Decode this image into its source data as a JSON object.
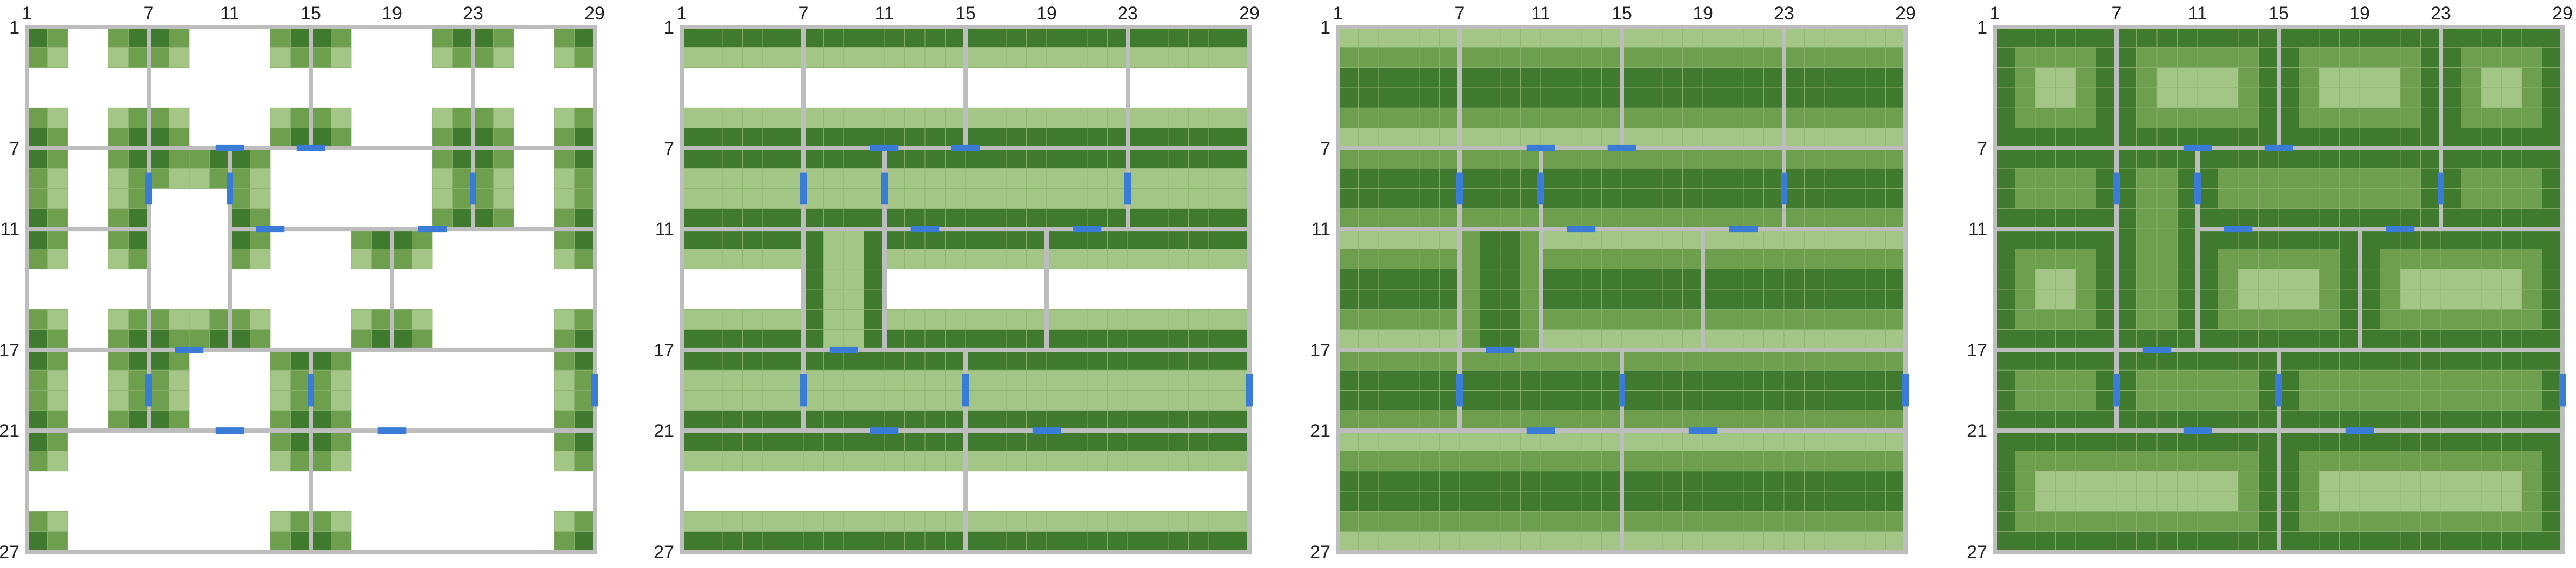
{
  "figure": {
    "x_ticks": [
      "1",
      "7",
      "11",
      "15",
      "19",
      "23",
      "29"
    ],
    "y_ticks": [
      "1",
      "7",
      "11",
      "17",
      "21",
      "27"
    ],
    "colors": {
      "dark": "#3f7a2e",
      "medium": "#6d9f4f",
      "light": "#a3c585",
      "cell_line": "#8cb36f",
      "boundary": "#bdbdbd",
      "connector": "#3a7bd5"
    },
    "shared_x_boundaries": [
      1,
      7,
      11,
      15,
      19,
      23,
      29
    ],
    "shared_y_boundaries": [
      1,
      7,
      11,
      17,
      21,
      27
    ],
    "panels": [
      {
        "pattern": "corners",
        "blocks": [
          [
            1,
            1,
            7,
            7
          ],
          [
            7,
            1,
            15,
            7
          ],
          [
            15,
            1,
            23,
            7
          ],
          [
            23,
            1,
            29,
            7
          ],
          [
            1,
            7,
            7,
            11
          ],
          [
            7,
            7,
            11,
            17
          ],
          [
            11,
            7,
            23,
            11
          ],
          [
            23,
            7,
            29,
            11
          ],
          [
            1,
            11,
            7,
            17
          ],
          [
            11,
            11,
            19,
            17
          ],
          [
            19,
            11,
            29,
            17
          ],
          [
            1,
            17,
            7,
            21
          ],
          [
            7,
            17,
            15,
            21
          ],
          [
            15,
            17,
            29,
            21
          ],
          [
            1,
            21,
            15,
            27
          ],
          [
            15,
            21,
            29,
            27
          ]
        ],
        "connectors": [
          [
            "h",
            11,
            7
          ],
          [
            "h",
            15,
            7
          ],
          [
            "v",
            7,
            9
          ],
          [
            "v",
            11,
            9
          ],
          [
            "v",
            23,
            9
          ],
          [
            "h",
            13,
            11
          ],
          [
            "h",
            21,
            11
          ],
          [
            "h",
            9,
            17
          ],
          [
            "v",
            7,
            19
          ],
          [
            "v",
            15,
            19
          ],
          [
            "v",
            29,
            19
          ],
          [
            "h",
            11,
            21
          ],
          [
            "h",
            19,
            21
          ]
        ]
      },
      {
        "pattern": "edges",
        "blocks": [
          [
            1,
            1,
            7,
            7
          ],
          [
            7,
            1,
            15,
            7
          ],
          [
            15,
            1,
            23,
            7
          ],
          [
            23,
            1,
            29,
            7
          ],
          [
            1,
            7,
            7,
            11
          ],
          [
            7,
            7,
            11,
            11
          ],
          [
            11,
            7,
            23,
            11
          ],
          [
            23,
            7,
            29,
            11
          ],
          [
            1,
            11,
            7,
            17
          ],
          [
            7,
            11,
            11,
            17
          ],
          [
            11,
            11,
            19,
            17
          ],
          [
            19,
            11,
            29,
            17
          ],
          [
            1,
            17,
            7,
            21
          ],
          [
            7,
            17,
            15,
            21
          ],
          [
            15,
            17,
            29,
            21
          ],
          [
            1,
            21,
            15,
            27
          ],
          [
            15,
            21,
            29,
            27
          ]
        ],
        "connectors": [
          [
            "h",
            11,
            7
          ],
          [
            "h",
            15,
            7
          ],
          [
            "v",
            7,
            9
          ],
          [
            "v",
            11,
            9
          ],
          [
            "v",
            23,
            9
          ],
          [
            "h",
            13,
            11
          ],
          [
            "h",
            21,
            11
          ],
          [
            "h",
            9,
            17
          ],
          [
            "v",
            7,
            19
          ],
          [
            "v",
            15,
            19
          ],
          [
            "v",
            29,
            19
          ],
          [
            "h",
            11,
            21
          ],
          [
            "h",
            19,
            21
          ]
        ]
      },
      {
        "pattern": "center",
        "blocks": [
          [
            1,
            1,
            7,
            7
          ],
          [
            7,
            1,
            15,
            7
          ],
          [
            15,
            1,
            23,
            7
          ],
          [
            23,
            1,
            29,
            7
          ],
          [
            1,
            7,
            7,
            11
          ],
          [
            7,
            7,
            11,
            11
          ],
          [
            11,
            7,
            23,
            11
          ],
          [
            23,
            7,
            29,
            11
          ],
          [
            1,
            11,
            7,
            17
          ],
          [
            7,
            11,
            11,
            17
          ],
          [
            11,
            11,
            19,
            17
          ],
          [
            19,
            11,
            29,
            17
          ],
          [
            1,
            17,
            7,
            21
          ],
          [
            7,
            17,
            15,
            21
          ],
          [
            15,
            17,
            29,
            21
          ],
          [
            1,
            21,
            15,
            27
          ],
          [
            15,
            21,
            29,
            27
          ]
        ],
        "connectors": [
          [
            "h",
            11,
            7
          ],
          [
            "h",
            15,
            7
          ],
          [
            "v",
            7,
            9
          ],
          [
            "v",
            11,
            9
          ],
          [
            "v",
            23,
            9
          ],
          [
            "h",
            13,
            11
          ],
          [
            "h",
            21,
            11
          ],
          [
            "h",
            9,
            17
          ],
          [
            "v",
            7,
            19
          ],
          [
            "v",
            15,
            19
          ],
          [
            "v",
            29,
            19
          ],
          [
            "h",
            11,
            21
          ],
          [
            "h",
            19,
            21
          ]
        ]
      },
      {
        "pattern": "frame",
        "blocks": [
          [
            1,
            1,
            7,
            7
          ],
          [
            7,
            1,
            15,
            7
          ],
          [
            15,
            1,
            23,
            7
          ],
          [
            23,
            1,
            29,
            7
          ],
          [
            1,
            7,
            7,
            11
          ],
          [
            7,
            7,
            11,
            17
          ],
          [
            11,
            7,
            23,
            11
          ],
          [
            23,
            7,
            29,
            11
          ],
          [
            1,
            11,
            7,
            17
          ],
          [
            11,
            11,
            19,
            17
          ],
          [
            19,
            11,
            29,
            17
          ],
          [
            1,
            17,
            7,
            21
          ],
          [
            7,
            17,
            15,
            21
          ],
          [
            15,
            17,
            29,
            21
          ],
          [
            1,
            21,
            15,
            27
          ],
          [
            15,
            21,
            29,
            27
          ]
        ],
        "connectors": [
          [
            "h",
            11,
            7
          ],
          [
            "h",
            15,
            7
          ],
          [
            "v",
            7,
            9
          ],
          [
            "v",
            11,
            9
          ],
          [
            "v",
            23,
            9
          ],
          [
            "h",
            13,
            11
          ],
          [
            "h",
            21,
            11
          ],
          [
            "h",
            9,
            17
          ],
          [
            "v",
            7,
            19
          ],
          [
            "v",
            15,
            19
          ],
          [
            "v",
            29,
            19
          ],
          [
            "h",
            11,
            21
          ],
          [
            "h",
            19,
            21
          ]
        ]
      }
    ]
  }
}
